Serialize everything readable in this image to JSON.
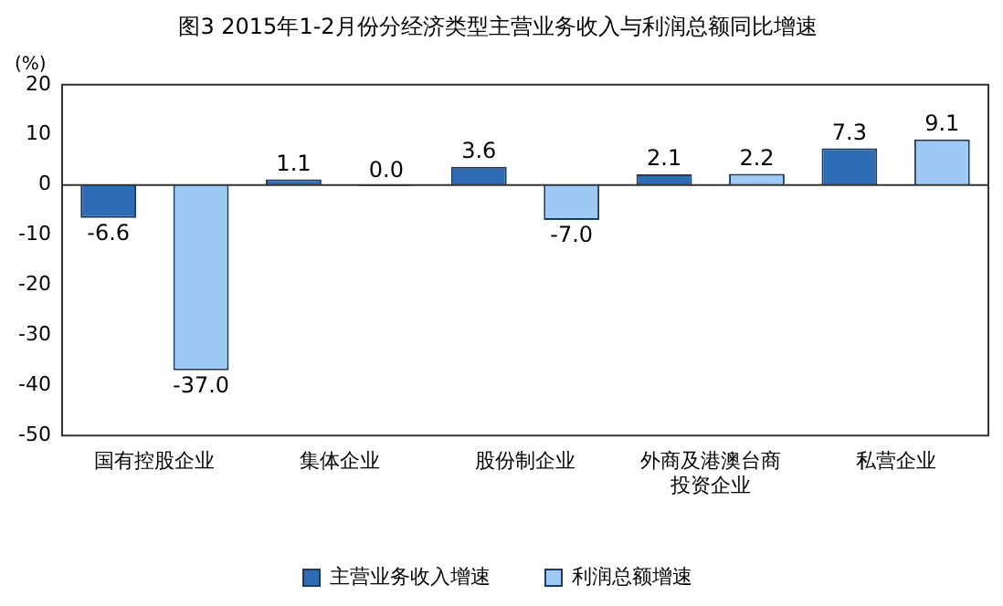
{
  "chart_data": {
    "type": "bar",
    "title": "图3 2015年1-2月份分经济类型主营业务收入与利润总额同比增速",
    "ylabel": "(%)",
    "categories": [
      "国有控股企业",
      "集体企业",
      "股份制企业",
      "外商及港澳台商投资企业",
      "私营企业"
    ],
    "series": [
      {
        "name": "主营业务收入增速",
        "color": "#2e6db5",
        "values": [
          -6.6,
          1.1,
          3.6,
          2.1,
          7.3
        ],
        "value_labels": [
          "-6.6",
          "1.1",
          "3.6",
          "2.1",
          "7.3"
        ]
      },
      {
        "name": "利润总额增速",
        "color": "#9dcaf5",
        "values": [
          -37.0,
          0.0,
          -7.0,
          2.2,
          9.1
        ],
        "value_labels": [
          "-37.0",
          "0.0",
          "-7.0",
          "2.2",
          "9.1"
        ]
      }
    ],
    "ylim": [
      -50,
      20
    ],
    "yticks": [
      -50,
      -40,
      -30,
      -20,
      -10,
      0,
      10,
      20
    ],
    "grid": false,
    "legend": "bottom",
    "ref_lines": [
      {
        "axis": "y",
        "value": 0,
        "color": "#333333"
      }
    ]
  }
}
